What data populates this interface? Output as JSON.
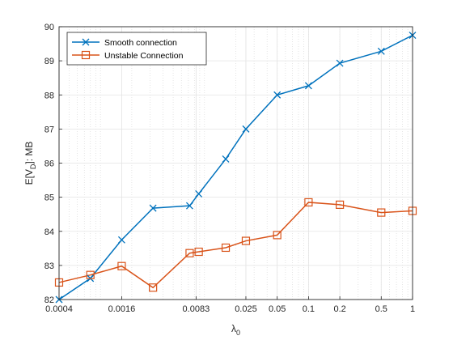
{
  "chart_data": {
    "type": "line",
    "x_scale": "log",
    "x": [
      0.0004,
      0.0008,
      0.0016,
      0.0032,
      0.0072,
      0.0088,
      0.016,
      0.025,
      0.05,
      0.1,
      0.2,
      0.5,
      1
    ],
    "x_ticks": [
      0.0004,
      0.0016,
      0.0083,
      0.025,
      0.05,
      0.1,
      0.2,
      0.5,
      1
    ],
    "x_tick_labels": [
      "0.0004",
      "0.0016",
      "0.0083",
      "0.025",
      "0.05",
      "0.1",
      "0.2",
      "0.5",
      "1"
    ],
    "xlim": [
      0.0004,
      1
    ],
    "y_ticks": [
      82,
      83,
      84,
      85,
      86,
      87,
      88,
      89,
      90
    ],
    "ylim": [
      82,
      90
    ],
    "xlabel": "λ",
    "xlabel_sub": "0",
    "ylabel": "E[V",
    "ylabel_sub": "D",
    "ylabel_tail": "]: MB",
    "grid": true,
    "legend_position": "top-left",
    "series": [
      {
        "name": "Smooth connection",
        "color": "#0072BD",
        "marker": "x",
        "values": [
          82.0,
          82.62,
          83.75,
          84.68,
          84.75,
          85.1,
          86.12,
          87.0,
          88.0,
          88.27,
          88.93,
          89.28,
          89.75
        ]
      },
      {
        "name": "Unstable Connection",
        "color": "#D95319",
        "marker": "square",
        "values": [
          82.5,
          82.72,
          82.98,
          82.35,
          83.36,
          83.4,
          83.52,
          83.72,
          83.89,
          84.85,
          84.78,
          84.55,
          84.6
        ]
      }
    ]
  }
}
